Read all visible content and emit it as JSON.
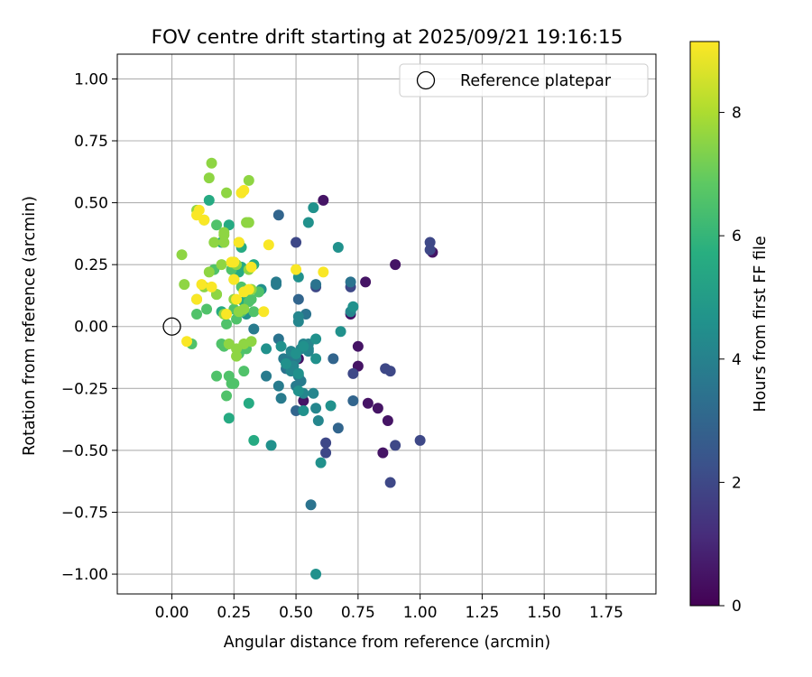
{
  "chart_data": {
    "type": "scatter",
    "title": "FOV centre drift starting at 2025/09/21 19:16:15",
    "xlabel": "Angular distance from reference (arcmin)",
    "ylabel": "Rotation from reference (arcmin)",
    "xlim": [
      -0.22,
      1.95
    ],
    "ylim": [
      -1.08,
      1.1
    ],
    "xticks": [
      0.0,
      0.25,
      0.5,
      0.75,
      1.0,
      1.25,
      1.5,
      1.75
    ],
    "xtick_labels": [
      "0.00",
      "0.25",
      "0.50",
      "0.75",
      "1.00",
      "1.25",
      "1.50",
      "1.75"
    ],
    "yticks": [
      1.0,
      0.75,
      0.5,
      0.25,
      0.0,
      -0.25,
      -0.5,
      -0.75,
      -1.0
    ],
    "ytick_labels": [
      "1.00",
      "0.75",
      "0.50",
      "0.25",
      "0.00",
      "−0.25",
      "−0.50",
      "−0.75",
      "−1.00"
    ],
    "grid": true,
    "legend": {
      "position": "top-right",
      "entries": [
        "Reference platepar"
      ]
    },
    "reference_point": {
      "x": 0.0,
      "y": 0.0,
      "label": "Reference platepar"
    },
    "colorbar": {
      "label": "Hours from first FF file",
      "range": [
        0,
        9.15
      ],
      "ticks": [
        0,
        2,
        4,
        6,
        8
      ],
      "tick_labels": [
        "0",
        "2",
        "4",
        "6",
        "8"
      ],
      "colormap": "viridis"
    },
    "points": [
      [
        0.61,
        0.51,
        0.5
      ],
      [
        0.9,
        0.25,
        0.5
      ],
      [
        1.05,
        0.3,
        0.5
      ],
      [
        0.78,
        0.18,
        0.5
      ],
      [
        0.72,
        0.05,
        0.5
      ],
      [
        0.75,
        -0.08,
        0.5
      ],
      [
        0.75,
        -0.16,
        0.5
      ],
      [
        0.79,
        -0.31,
        0.5
      ],
      [
        0.83,
        -0.33,
        0.5
      ],
      [
        0.87,
        -0.38,
        0.5
      ],
      [
        0.85,
        -0.51,
        0.5
      ],
      [
        0.53,
        -0.3,
        0.5
      ],
      [
        0.51,
        -0.13,
        0.5
      ],
      [
        1.04,
        0.34,
        2.0
      ],
      [
        1.04,
        0.31,
        2.0
      ],
      [
        0.72,
        0.16,
        2.0
      ],
      [
        0.86,
        -0.17,
        2.0
      ],
      [
        0.88,
        -0.18,
        2.0
      ],
      [
        0.73,
        -0.19,
        2.0
      ],
      [
        0.88,
        -0.63,
        2.0
      ],
      [
        0.9,
        -0.48,
        2.0
      ],
      [
        1.0,
        -0.46,
        2.0
      ],
      [
        0.62,
        -0.47,
        2.0
      ],
      [
        0.62,
        -0.51,
        2.0
      ],
      [
        0.58,
        0.16,
        2.0
      ],
      [
        0.5,
        0.34,
        2.0
      ],
      [
        0.43,
        0.45,
        3.0
      ],
      [
        0.51,
        0.11,
        3.0
      ],
      [
        0.67,
        -0.41,
        3.0
      ],
      [
        0.73,
        -0.3,
        3.0
      ],
      [
        0.65,
        -0.13,
        3.0
      ],
      [
        0.5,
        -0.34,
        3.0
      ],
      [
        0.56,
        -0.72,
        3.5
      ],
      [
        0.58,
        0.17,
        3.5
      ],
      [
        0.54,
        0.05,
        3.5
      ],
      [
        0.72,
        0.18,
        3.5
      ],
      [
        0.43,
        -0.05,
        3.5
      ],
      [
        0.46,
        -0.17,
        3.5
      ],
      [
        0.42,
        0.18,
        3.8
      ],
      [
        0.42,
        0.17,
        3.8
      ],
      [
        0.33,
        -0.01,
        3.8
      ],
      [
        0.38,
        -0.2,
        3.8
      ],
      [
        0.45,
        -0.13,
        3.8
      ],
      [
        0.48,
        -0.12,
        3.8
      ],
      [
        0.5,
        -0.13,
        3.8
      ],
      [
        0.51,
        -0.2,
        3.8
      ],
      [
        0.52,
        -0.22,
        3.8
      ],
      [
        0.44,
        -0.29,
        3.8
      ],
      [
        0.5,
        -0.24,
        3.8
      ],
      [
        0.43,
        -0.24,
        3.8
      ],
      [
        0.55,
        -0.1,
        4.2
      ],
      [
        0.52,
        -0.09,
        4.2
      ],
      [
        0.53,
        -0.07,
        4.2
      ],
      [
        0.55,
        -0.07,
        4.2
      ],
      [
        0.49,
        -0.16,
        4.2
      ],
      [
        0.48,
        -0.18,
        4.2
      ],
      [
        0.53,
        -0.27,
        4.2
      ],
      [
        0.51,
        0.02,
        4.2
      ],
      [
        0.58,
        -0.33,
        4.2
      ],
      [
        0.59,
        -0.38,
        4.2
      ],
      [
        0.51,
        0.04,
        4.2
      ],
      [
        0.72,
        0.06,
        4.2
      ],
      [
        0.57,
        -0.27,
        4.2
      ],
      [
        0.48,
        -0.1,
        4.2
      ],
      [
        0.55,
        -0.09,
        4.2
      ],
      [
        0.51,
        -0.19,
        4.6
      ],
      [
        0.58,
        -0.05,
        4.6
      ],
      [
        0.53,
        -0.08,
        4.6
      ],
      [
        0.5,
        -0.11,
        4.6
      ],
      [
        0.68,
        -0.02,
        4.6
      ],
      [
        0.44,
        -0.08,
        4.6
      ],
      [
        0.38,
        -0.09,
        4.6
      ],
      [
        0.58,
        -0.13,
        4.6
      ],
      [
        0.51,
        0.2,
        4.6
      ],
      [
        0.57,
        0.48,
        4.6
      ],
      [
        0.55,
        0.42,
        4.6
      ],
      [
        0.73,
        0.08,
        4.6
      ],
      [
        0.3,
        0.05,
        4.6
      ],
      [
        0.36,
        0.15,
        4.6
      ],
      [
        0.4,
        -0.48,
        4.6
      ],
      [
        0.53,
        -0.34,
        4.6
      ],
      [
        0.6,
        -0.55,
        4.6
      ],
      [
        0.58,
        -1.0,
        4.6
      ],
      [
        0.67,
        0.32,
        4.6
      ],
      [
        0.64,
        -0.32,
        4.6
      ],
      [
        0.51,
        -0.26,
        4.6
      ],
      [
        0.46,
        -0.15,
        4.6
      ],
      [
        0.15,
        0.51,
        5.6
      ],
      [
        0.23,
        0.41,
        5.6
      ],
      [
        0.28,
        0.32,
        5.6
      ],
      [
        0.28,
        0.24,
        5.6
      ],
      [
        0.23,
        -0.37,
        5.6
      ],
      [
        0.33,
        -0.46,
        5.6
      ],
      [
        0.31,
        -0.31,
        5.6
      ],
      [
        0.25,
        0.26,
        5.6
      ],
      [
        0.33,
        0.25,
        5.6
      ],
      [
        0.27,
        0.22,
        5.6
      ],
      [
        0.2,
        0.34,
        5.6
      ],
      [
        0.29,
        0.1,
        5.6
      ],
      [
        0.2,
        0.06,
        5.6
      ],
      [
        0.18,
        0.13,
        6.6
      ],
      [
        0.21,
        -0.08,
        6.6
      ],
      [
        0.26,
        0.03,
        6.6
      ],
      [
        0.22,
        0.01,
        6.6
      ],
      [
        0.28,
        0.16,
        6.6
      ],
      [
        0.24,
        0.23,
        6.6
      ],
      [
        0.32,
        0.11,
        6.6
      ],
      [
        0.35,
        0.14,
        6.6
      ],
      [
        0.25,
        -0.23,
        6.6
      ],
      [
        0.23,
        -0.2,
        6.6
      ],
      [
        0.18,
        -0.2,
        6.6
      ],
      [
        0.27,
        -0.11,
        6.6
      ],
      [
        0.3,
        -0.09,
        6.6
      ],
      [
        0.29,
        -0.18,
        6.6
      ],
      [
        0.35,
        0.14,
        6.6
      ],
      [
        0.33,
        0.06,
        6.6
      ],
      [
        0.31,
        0.1,
        6.6
      ],
      [
        0.17,
        0.23,
        6.6
      ],
      [
        0.18,
        0.41,
        6.6
      ],
      [
        0.14,
        0.07,
        6.6
      ],
      [
        0.2,
        -0.07,
        6.6
      ],
      [
        0.22,
        -0.28,
        6.6
      ],
      [
        0.25,
        0.07,
        6.6
      ],
      [
        0.28,
        0.06,
        6.6
      ],
      [
        0.1,
        0.05,
        6.6
      ],
      [
        0.08,
        -0.07,
        6.6
      ],
      [
        0.24,
        -0.23,
        6.6
      ],
      [
        0.31,
        0.59,
        7.6
      ],
      [
        0.15,
        0.6,
        7.6
      ],
      [
        0.16,
        0.66,
        7.6
      ],
      [
        0.21,
        0.38,
        7.6
      ],
      [
        0.21,
        0.37,
        7.6
      ],
      [
        0.1,
        0.47,
        7.6
      ],
      [
        0.04,
        0.29,
        7.6
      ],
      [
        0.05,
        0.17,
        7.6
      ],
      [
        0.17,
        0.34,
        7.6
      ],
      [
        0.13,
        0.16,
        7.6
      ],
      [
        0.21,
        0.34,
        7.6
      ],
      [
        0.22,
        0.54,
        7.6
      ],
      [
        0.28,
        0.54,
        7.6
      ],
      [
        0.27,
        0.34,
        7.6
      ],
      [
        0.3,
        0.42,
        7.6
      ],
      [
        0.31,
        0.42,
        7.6
      ],
      [
        0.31,
        0.23,
        7.6
      ],
      [
        0.25,
        0.19,
        7.6
      ],
      [
        0.26,
        0.25,
        7.6
      ],
      [
        0.32,
        0.15,
        7.6
      ],
      [
        0.2,
        0.25,
        7.6
      ],
      [
        0.15,
        0.22,
        7.6
      ],
      [
        0.18,
        0.13,
        7.6
      ],
      [
        0.25,
        0.11,
        7.6
      ],
      [
        0.29,
        0.07,
        7.6
      ],
      [
        0.27,
        0.06,
        7.6
      ],
      [
        0.32,
        -0.06,
        7.6
      ],
      [
        0.29,
        -0.07,
        7.6
      ],
      [
        0.26,
        -0.12,
        7.6
      ],
      [
        0.23,
        -0.07,
        7.6
      ],
      [
        0.26,
        -0.09,
        7.6
      ],
      [
        0.21,
        0.05,
        7.6
      ],
      [
        0.1,
        0.11,
        7.6
      ],
      [
        0.13,
        0.43,
        7.6
      ],
      [
        0.29,
        0.55,
        9.1
      ],
      [
        0.28,
        0.54,
        9.1
      ],
      [
        0.11,
        0.47,
        9.1
      ],
      [
        0.13,
        0.43,
        9.1
      ],
      [
        0.1,
        0.45,
        9.1
      ],
      [
        0.39,
        0.33,
        9.1
      ],
      [
        0.25,
        0.26,
        9.1
      ],
      [
        0.32,
        0.24,
        9.1
      ],
      [
        0.5,
        0.23,
        9.1
      ],
      [
        0.61,
        0.22,
        9.1
      ],
      [
        0.24,
        0.26,
        9.1
      ],
      [
        0.25,
        0.19,
        9.1
      ],
      [
        0.12,
        0.17,
        9.1
      ],
      [
        0.16,
        0.16,
        9.1
      ],
      [
        0.31,
        0.15,
        9.1
      ],
      [
        0.29,
        0.14,
        9.1
      ],
      [
        0.1,
        0.11,
        9.1
      ],
      [
        0.26,
        0.11,
        9.1
      ],
      [
        0.37,
        0.06,
        9.1
      ],
      [
        0.22,
        0.05,
        9.1
      ],
      [
        0.06,
        -0.06,
        9.1
      ],
      [
        0.27,
        0.34,
        9.1
      ]
    ]
  }
}
